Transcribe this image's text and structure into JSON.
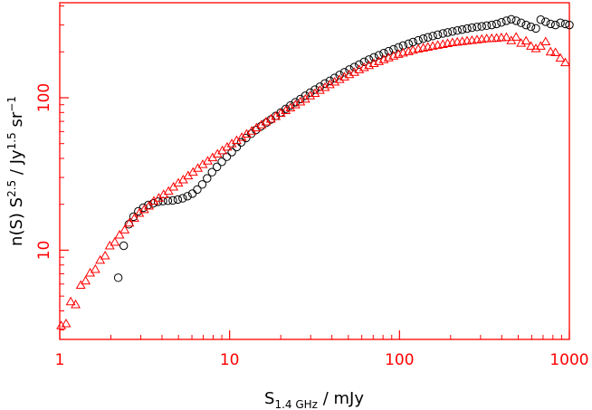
{
  "chart_data": {
    "type": "scatter",
    "title": "",
    "xlabel": {
      "base": "S",
      "sub": "1.4 GHz",
      "rest": " / mJy"
    },
    "ylabel": {
      "p1": "n(S) S",
      "sup1": "2.5",
      "p2": " / Jy",
      "sup2": "1.5",
      "p3": " sr",
      "sup3": "−1"
    },
    "xscale": "log",
    "yscale": "log",
    "xlim": [
      1,
      1000
    ],
    "ylim": [
      2.6,
      420
    ],
    "x_ticks": [
      1,
      10,
      100,
      1000
    ],
    "x_tick_labels": [
      "1",
      "10",
      "100",
      "1000"
    ],
    "y_ticks": [
      10,
      100
    ],
    "y_tick_labels": [
      "10",
      "100"
    ],
    "grid": false,
    "legend": "none",
    "colors": {
      "axes": "#ff0000",
      "series_circles": "#000000",
      "series_triangles": "#ff0000"
    },
    "series": [
      {
        "marker": "circle",
        "color": "#000000",
        "points": [
          [
            2.21,
            6.6
          ],
          [
            2.38,
            10.7
          ],
          [
            2.55,
            14.8
          ],
          [
            2.72,
            16.6
          ],
          [
            2.9,
            18.0
          ],
          [
            3.1,
            19.0
          ],
          [
            3.32,
            19.8
          ],
          [
            3.55,
            20.3
          ],
          [
            3.79,
            20.8
          ],
          [
            4.05,
            21.0
          ],
          [
            4.33,
            21.1
          ],
          [
            4.63,
            21.2
          ],
          [
            4.95,
            21.5
          ],
          [
            5.29,
            21.9
          ],
          [
            5.65,
            22.6
          ],
          [
            6.04,
            23.5
          ],
          [
            6.45,
            25.0
          ],
          [
            6.9,
            27.0
          ],
          [
            7.37,
            29.6
          ],
          [
            7.88,
            32.5
          ],
          [
            8.42,
            35.2
          ],
          [
            9.0,
            38.0
          ],
          [
            9.62,
            41.0
          ],
          [
            10.3,
            44.0
          ],
          [
            11.0,
            47.5
          ],
          [
            11.7,
            51.0
          ],
          [
            12.5,
            54.5
          ],
          [
            13.4,
            58.0
          ],
          [
            14.3,
            61.5
          ],
          [
            15.3,
            65.0
          ],
          [
            16.4,
            68.5
          ],
          [
            17.5,
            72.0
          ],
          [
            18.7,
            76.0
          ],
          [
            20.0,
            80.0
          ],
          [
            21.4,
            84.5
          ],
          [
            22.8,
            89.0
          ],
          [
            24.4,
            93.5
          ],
          [
            26.1,
            98.0
          ],
          [
            27.9,
            103
          ],
          [
            29.8,
            108
          ],
          [
            31.8,
            113
          ],
          [
            34.0,
            118
          ],
          [
            36.4,
            124
          ],
          [
            38.9,
            129
          ],
          [
            41.5,
            135
          ],
          [
            44.4,
            141
          ],
          [
            47.4,
            147
          ],
          [
            50.7,
            153
          ],
          [
            54.2,
            159
          ],
          [
            57.9,
            165
          ],
          [
            61.9,
            172
          ],
          [
            66.1,
            178
          ],
          [
            70.7,
            184
          ],
          [
            75.6,
            190
          ],
          [
            80.8,
            196
          ],
          [
            86.3,
            202
          ],
          [
            92.3,
            208
          ],
          [
            98.6,
            214
          ],
          [
            105,
            220
          ],
          [
            113,
            226
          ],
          [
            120,
            232
          ],
          [
            129,
            238
          ],
          [
            138,
            244
          ],
          [
            147,
            249
          ],
          [
            157,
            254
          ],
          [
            168,
            259
          ],
          [
            180,
            264
          ],
          [
            192,
            268
          ],
          [
            205,
            272
          ],
          [
            219,
            276
          ],
          [
            234,
            280
          ],
          [
            250,
            284
          ],
          [
            267,
            288
          ],
          [
            286,
            291
          ],
          [
            305,
            294
          ],
          [
            326,
            297
          ],
          [
            349,
            300
          ],
          [
            373,
            305
          ],
          [
            398,
            312
          ],
          [
            426,
            320
          ],
          [
            455,
            327
          ],
          [
            486,
            320
          ],
          [
            520,
            310
          ],
          [
            556,
            300
          ],
          [
            594,
            292
          ],
          [
            635,
            285
          ],
          [
            678,
            325
          ],
          [
            725,
            315
          ],
          [
            775,
            305
          ],
          [
            828,
            300
          ],
          [
            885,
            310
          ],
          [
            946,
            305
          ],
          [
            1000,
            300
          ]
        ]
      },
      {
        "marker": "triangle",
        "color": "#ff0000",
        "points": [
          [
            1.02,
            3.2
          ],
          [
            1.09,
            3.3
          ],
          [
            1.16,
            4.6
          ],
          [
            1.24,
            4.4
          ],
          [
            1.33,
            5.9
          ],
          [
            1.42,
            6.3
          ],
          [
            1.51,
            7.1
          ],
          [
            1.62,
            7.5
          ],
          [
            1.73,
            8.6
          ],
          [
            1.85,
            9.2
          ],
          [
            1.97,
            10.7
          ],
          [
            2.11,
            11.3
          ],
          [
            2.25,
            12.6
          ],
          [
            2.41,
            13.6
          ],
          [
            2.57,
            15.1
          ],
          [
            2.75,
            16.2
          ],
          [
            2.94,
            17.5
          ],
          [
            3.14,
            18.5
          ],
          [
            3.35,
            19.5
          ],
          [
            3.58,
            21.0
          ],
          [
            3.83,
            22.0
          ],
          [
            4.09,
            23.2
          ],
          [
            4.37,
            24.4
          ],
          [
            4.67,
            26.0
          ],
          [
            4.99,
            27.6
          ],
          [
            5.33,
            29.0
          ],
          [
            5.7,
            30.8
          ],
          [
            6.09,
            32.5
          ],
          [
            6.5,
            34.5
          ],
          [
            6.95,
            36.5
          ],
          [
            7.43,
            38.5
          ],
          [
            7.94,
            40.5
          ],
          [
            8.48,
            42.8
          ],
          [
            9.06,
            45.0
          ],
          [
            9.68,
            47.5
          ],
          [
            10.3,
            50.0
          ],
          [
            11.0,
            52.5
          ],
          [
            11.8,
            55.0
          ],
          [
            12.6,
            57.8
          ],
          [
            13.5,
            60.5
          ],
          [
            14.4,
            63.5
          ],
          [
            15.4,
            66.5
          ],
          [
            16.4,
            69.5
          ],
          [
            17.5,
            72.5
          ],
          [
            18.7,
            75.5
          ],
          [
            20.0,
            79.0
          ],
          [
            21.4,
            82.5
          ],
          [
            22.8,
            86.0
          ],
          [
            24.4,
            90.0
          ],
          [
            26.1,
            94.0
          ],
          [
            27.9,
            98.0
          ],
          [
            29.8,
            103
          ],
          [
            31.8,
            107
          ],
          [
            34.0,
            112
          ],
          [
            36.4,
            117
          ],
          [
            38.9,
            122
          ],
          [
            41.5,
            127
          ],
          [
            44.4,
            132
          ],
          [
            47.4,
            137
          ],
          [
            50.7,
            142
          ],
          [
            54.2,
            147
          ],
          [
            57.9,
            153
          ],
          [
            61.9,
            158
          ],
          [
            66.1,
            163
          ],
          [
            70.7,
            168
          ],
          [
            75.6,
            173
          ],
          [
            80.8,
            178
          ],
          [
            86.3,
            183
          ],
          [
            92.3,
            188
          ],
          [
            98.6,
            193
          ],
          [
            105,
            197
          ],
          [
            113,
            201
          ],
          [
            120,
            205
          ],
          [
            129,
            209
          ],
          [
            138,
            212
          ],
          [
            147,
            215
          ],
          [
            157,
            218
          ],
          [
            168,
            221
          ],
          [
            180,
            224
          ],
          [
            192,
            227
          ],
          [
            205,
            230
          ],
          [
            219,
            232
          ],
          [
            234,
            234
          ],
          [
            250,
            236
          ],
          [
            267,
            238
          ],
          [
            286,
            240
          ],
          [
            305,
            242
          ],
          [
            326,
            244
          ],
          [
            349,
            245
          ],
          [
            373,
            246
          ],
          [
            398,
            248
          ],
          [
            426,
            249
          ],
          [
            455,
            237
          ],
          [
            486,
            250
          ],
          [
            520,
            228
          ],
          [
            556,
            236
          ],
          [
            594,
            218
          ],
          [
            635,
            210
          ],
          [
            678,
            218
          ],
          [
            725,
            233
          ],
          [
            775,
            200
          ],
          [
            828,
            198
          ],
          [
            885,
            182
          ],
          [
            946,
            170
          ]
        ]
      }
    ]
  }
}
